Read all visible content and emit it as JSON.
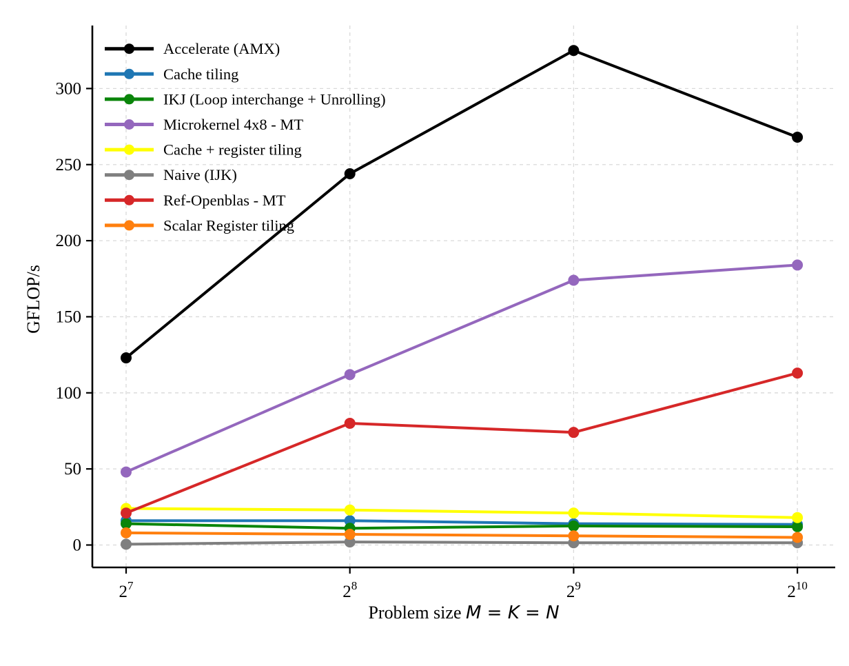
{
  "chart_data": {
    "type": "line",
    "title": "",
    "xlabel_prefix": "Problem size ",
    "xlabel_math": "M = K = N",
    "ylabel": "GFLOP/s",
    "x_tick_labels": [
      {
        "base": "2",
        "exp": "7"
      },
      {
        "base": "2",
        "exp": "8"
      },
      {
        "base": "2",
        "exp": "9"
      },
      {
        "base": "2",
        "exp": "10"
      }
    ],
    "x_values": [
      128,
      256,
      512,
      1024
    ],
    "yticks": [
      0,
      50,
      100,
      150,
      200,
      250,
      300
    ],
    "ylim": [
      -15,
      341
    ],
    "grid": true,
    "grid_style": "dashed",
    "legend_position": "upper left",
    "series": [
      {
        "name": "Accelerate (AMX)",
        "color": "#000000",
        "values": [
          123,
          244,
          325,
          268
        ]
      },
      {
        "name": "Cache tiling",
        "color": "#1f77b4",
        "values": [
          16,
          16,
          14,
          13.5
        ]
      },
      {
        "name": "IKJ (Loop interchange + Unrolling)",
        "color": "#0a850a",
        "values": [
          14,
          11,
          12.5,
          12
        ]
      },
      {
        "name": "Microkernel 4x8 - MT",
        "color": "#9467bd",
        "values": [
          48,
          112,
          174,
          184
        ]
      },
      {
        "name": "Cache + register tiling",
        "color": "#ffff00",
        "values": [
          24,
          23,
          21,
          18
        ]
      },
      {
        "name": "Naive (IJK)",
        "color": "#7f7f7f",
        "values": [
          0.5,
          2,
          1.5,
          1.5
        ]
      },
      {
        "name": "Ref-Openblas - MT",
        "color": "#d62728",
        "values": [
          21,
          80,
          74,
          113
        ]
      },
      {
        "name": "Scalar Register tiling",
        "color": "#ff7f0e",
        "values": [
          8,
          7,
          6,
          5
        ]
      }
    ]
  }
}
